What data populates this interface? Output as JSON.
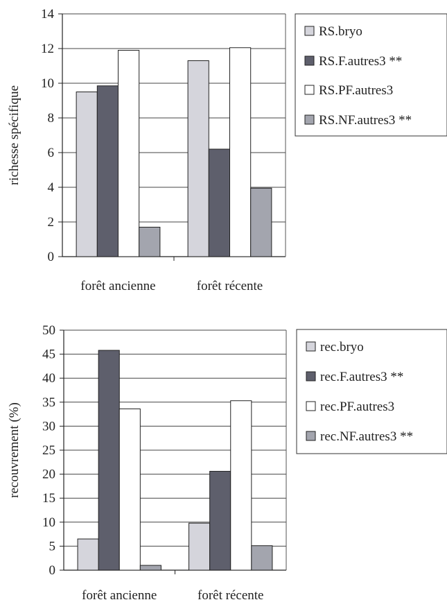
{
  "chart_data": [
    {
      "type": "bar",
      "ylabel": "richesse spécifique",
      "ylim": [
        0,
        14
      ],
      "ytick_step": 2,
      "ytick_labels": [
        "0",
        "2",
        "4",
        "6",
        "8",
        "10",
        "12",
        "14"
      ],
      "categories": [
        "forêt ancienne",
        "forêt récente"
      ],
      "legend_placement": "right",
      "grid": true,
      "series": [
        {
          "name": "RS.bryo",
          "values": [
            9.5,
            11.3
          ],
          "color": "#d5d5dc"
        },
        {
          "name": "RS.F.autres3 **",
          "values": [
            9.85,
            6.2
          ],
          "color": "#5e5f6c"
        },
        {
          "name": "RS.PF.autres3",
          "values": [
            11.9,
            12.05
          ],
          "color": "#ffffff"
        },
        {
          "name": "RS.NF.autres3 **",
          "values": [
            1.7,
            3.95
          ],
          "color": "#a3a5ae"
        }
      ]
    },
    {
      "type": "bar",
      "ylabel": "recouvrement (%)",
      "ylim": [
        0,
        50
      ],
      "ytick_step": 5,
      "ytick_labels": [
        "0",
        "5",
        "10",
        "15",
        "20",
        "25",
        "30",
        "35",
        "40",
        "45",
        "50"
      ],
      "categories": [
        "forêt ancienne",
        "forêt récente"
      ],
      "legend_placement": "right",
      "grid": true,
      "series": [
        {
          "name": "rec.bryo",
          "values": [
            6.5,
            9.8
          ],
          "color": "#d5d5dc"
        },
        {
          "name": "rec.F.autres3 **",
          "values": [
            45.8,
            20.6
          ],
          "color": "#5e5f6c"
        },
        {
          "name": "rec.PF.autres3",
          "values": [
            33.6,
            35.3
          ],
          "color": "#ffffff"
        },
        {
          "name": "rec.NF.autres3 **",
          "values": [
            1.0,
            5.1
          ],
          "color": "#a3a5ae"
        }
      ]
    }
  ]
}
